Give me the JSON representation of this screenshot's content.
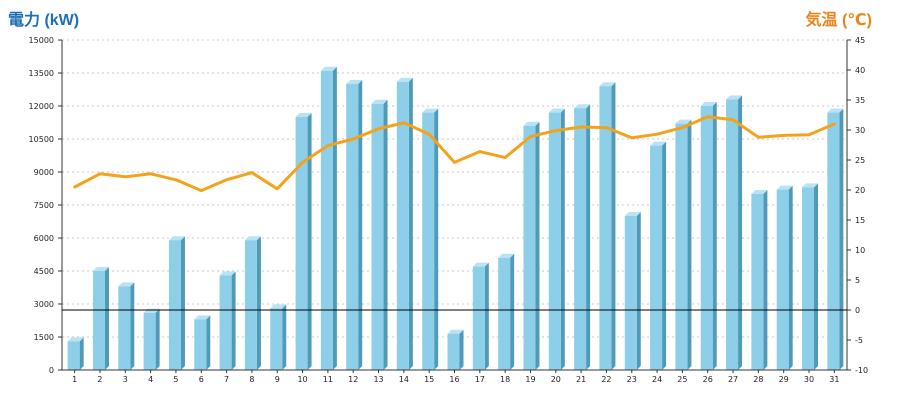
{
  "colors": {
    "power_title": "#1f6fb2",
    "temp_title": "#e8861b",
    "bar_front": "#8dcfe8",
    "bar_side": "#4f9ab8",
    "bar_top": "#b9e3f3",
    "temp_line": "#f2a31b",
    "grid": "#c8c8c8"
  },
  "chart_data": {
    "type": "bar+line",
    "y_left_title": "電力 (kW)",
    "y_right_title": "気温 (℃)",
    "categories": [
      "1",
      "2",
      "3",
      "4",
      "5",
      "6",
      "7",
      "8",
      "9",
      "10",
      "11",
      "12",
      "13",
      "14",
      "15",
      "16",
      "17",
      "18",
      "19",
      "20",
      "21",
      "22",
      "23",
      "24",
      "25",
      "26",
      "27",
      "28",
      "29",
      "30",
      "31"
    ],
    "series": [
      {
        "name": "電力 (kW)",
        "type": "bar",
        "axis": "left",
        "values": [
          1300,
          4500,
          3800,
          2600,
          5900,
          2300,
          4300,
          5900,
          2800,
          11500,
          13600,
          13000,
          12100,
          13100,
          11700,
          1650,
          4700,
          5100,
          11100,
          11700,
          11900,
          12900,
          7000,
          10200,
          11200,
          12000,
          12300,
          8000,
          8200,
          8300,
          11700
        ]
      },
      {
        "name": "気温 (℃)",
        "type": "line",
        "axis": "right",
        "values": [
          20.5,
          22.7,
          22.2,
          22.7,
          21.7,
          19.9,
          21.7,
          22.9,
          20.2,
          24.6,
          27.4,
          28.5,
          30.2,
          31.2,
          29.3,
          24.6,
          26.4,
          25.4,
          28.9,
          29.9,
          30.5,
          30.4,
          28.7,
          29.3,
          30.4,
          32.2,
          31.7,
          28.8,
          29.1,
          29.2,
          31.0
        ]
      }
    ],
    "y_left_ticks": [
      "0",
      "1500",
      "3000",
      "4500",
      "6000",
      "7500",
      "9000",
      "10500",
      "12000",
      "13500",
      "15000"
    ],
    "y_right_ticks": [
      "-10",
      "-5",
      "0",
      "5",
      "10",
      "15",
      "20",
      "25",
      "30",
      "35",
      "40",
      "45"
    ],
    "y_left_range": [
      0,
      15000
    ],
    "y_right_range": [
      -10,
      45
    ],
    "reference_line": {
      "axis": "right",
      "value": 0
    },
    "grid": "dashed horizontal"
  }
}
